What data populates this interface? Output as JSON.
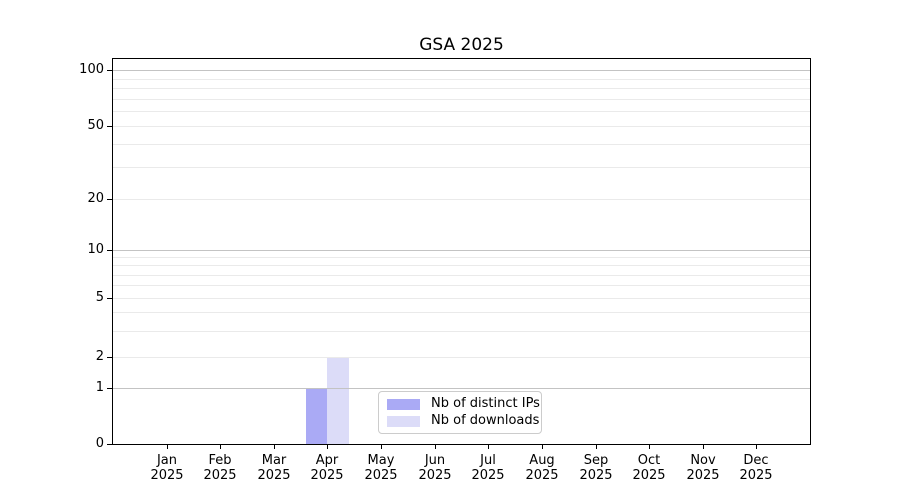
{
  "chart_data": {
    "type": "bar",
    "title": "GSA 2025",
    "categories": [
      "Jan 2025",
      "Feb 2025",
      "Mar 2025",
      "Apr 2025",
      "May 2025",
      "Jun 2025",
      "Jul 2025",
      "Aug 2025",
      "Sep 2025",
      "Oct 2025",
      "Nov 2025",
      "Dec 2025"
    ],
    "x_tick_labels": [
      {
        "month": "Jan",
        "year": "2025"
      },
      {
        "month": "Feb",
        "year": "2025"
      },
      {
        "month": "Mar",
        "year": "2025"
      },
      {
        "month": "Apr",
        "year": "2025"
      },
      {
        "month": "May",
        "year": "2025"
      },
      {
        "month": "Jun",
        "year": "2025"
      },
      {
        "month": "Jul",
        "year": "2025"
      },
      {
        "month": "Aug",
        "year": "2025"
      },
      {
        "month": "Sep",
        "year": "2025"
      },
      {
        "month": "Oct",
        "year": "2025"
      },
      {
        "month": "Nov",
        "year": "2025"
      },
      {
        "month": "Dec",
        "year": "2025"
      }
    ],
    "series": [
      {
        "name": "Nb of distinct IPs",
        "color": "#aaaaf5",
        "values": [
          0,
          0,
          0,
          1,
          0,
          0,
          0,
          0,
          0,
          0,
          0,
          0
        ]
      },
      {
        "name": "Nb of downloads",
        "color": "#dcdcf8",
        "values": [
          0,
          0,
          0,
          2,
          0,
          0,
          0,
          0,
          0,
          0,
          0,
          0
        ]
      }
    ],
    "yticks": [
      "0",
      "1",
      "2",
      "5",
      "10",
      "20",
      "50",
      "100"
    ],
    "ytick_values": [
      0,
      1,
      2,
      5,
      10,
      20,
      50,
      100
    ],
    "xlabel": "",
    "ylabel": "",
    "ylim": [
      0,
      115
    ],
    "yscale": "symlog-like (compressed log with linear zone near 0)",
    "grid": "horizontal, major lines at 1/10/100, faint minor log lines",
    "legend_position": "inside axes, lower center",
    "colors": {
      "spine": "#000000",
      "grid_major": "#c3c3c3",
      "grid_minor": "#eaeaea",
      "legend_border": "#cccccc"
    }
  }
}
